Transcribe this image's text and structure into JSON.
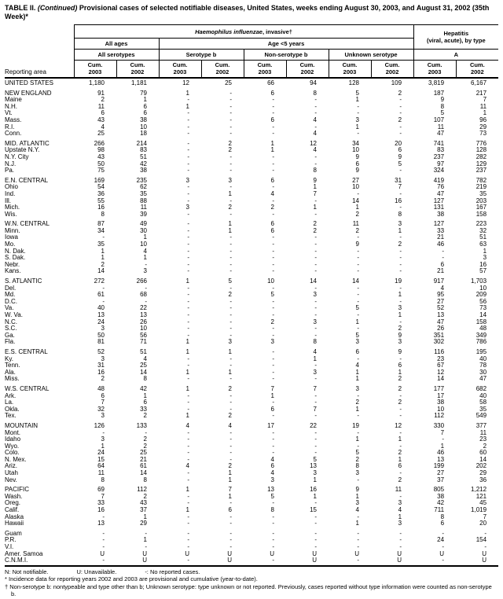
{
  "title": {
    "part1": "TABLE II. ",
    "part2": "(Continued)",
    "part3": " Provisional cases of selected notifiable diseases, United States, weeks ending August 30, 2003, and August 31, 2002 (35th Week)*"
  },
  "colors": {
    "text": "#000000",
    "background": "#ffffff",
    "border": "#000000"
  },
  "header": {
    "reporting_area": "Reporting area",
    "disease_italic": "Haemophilus influenzae",
    "disease_rest": ", invasive†",
    "hepatitis_line1": "Hepatitis",
    "hepatitis_line2": "(viral, acute), by type",
    "all_ages": "All ages",
    "age_under5": "Age <5 years",
    "groups": [
      "All serotypes",
      "Serotype b",
      "Non-serotype b",
      "Unknown serotype",
      "A"
    ],
    "cum_label": "Cum.",
    "year_2003": "2003",
    "year_2002": "2002"
  },
  "table": {
    "rows": [
      {
        "area": "UNITED STATES",
        "gap": false,
        "values": [
          "1,180",
          "1,181",
          "12",
          "25",
          "66",
          "94",
          "128",
          "109",
          "3,819",
          "6,167"
        ]
      },
      {
        "area": "NEW ENGLAND",
        "gap": true,
        "values": [
          "91",
          "79",
          "1",
          "-",
          "6",
          "8",
          "5",
          "2",
          "187",
          "217"
        ]
      },
      {
        "area": "Maine",
        "gap": false,
        "values": [
          "2",
          "1",
          "-",
          "-",
          "-",
          "-",
          "1",
          "-",
          "9",
          "7"
        ]
      },
      {
        "area": "N.H.",
        "gap": false,
        "values": [
          "11",
          "6",
          "1",
          "-",
          "-",
          "-",
          "-",
          "-",
          "8",
          "11"
        ]
      },
      {
        "area": "Vt.",
        "gap": false,
        "values": [
          "6",
          "6",
          "-",
          "-",
          "-",
          "-",
          "-",
          "-",
          "5",
          "1"
        ]
      },
      {
        "area": "Mass.",
        "gap": false,
        "values": [
          "43",
          "38",
          "-",
          "-",
          "6",
          "4",
          "3",
          "2",
          "107",
          "96"
        ]
      },
      {
        "area": "R.I.",
        "gap": false,
        "values": [
          "4",
          "10",
          "-",
          "-",
          "-",
          "-",
          "1",
          "-",
          "11",
          "29"
        ]
      },
      {
        "area": "Conn.",
        "gap": false,
        "values": [
          "25",
          "18",
          "-",
          "-",
          "-",
          "4",
          "-",
          "-",
          "47",
          "73"
        ]
      },
      {
        "area": "MID. ATLANTIC",
        "gap": true,
        "values": [
          "266",
          "214",
          "-",
          "2",
          "1",
          "12",
          "34",
          "20",
          "741",
          "776"
        ]
      },
      {
        "area": "Upstate N.Y.",
        "gap": false,
        "values": [
          "98",
          "83",
          "-",
          "2",
          "1",
          "4",
          "10",
          "6",
          "83",
          "128"
        ]
      },
      {
        "area": "N.Y. City",
        "gap": false,
        "values": [
          "43",
          "51",
          "-",
          "-",
          "-",
          "-",
          "9",
          "9",
          "237",
          "282"
        ]
      },
      {
        "area": "N.J.",
        "gap": false,
        "values": [
          "50",
          "42",
          "-",
          "-",
          "-",
          "-",
          "6",
          "5",
          "97",
          "129"
        ]
      },
      {
        "area": "Pa.",
        "gap": false,
        "values": [
          "75",
          "38",
          "-",
          "-",
          "-",
          "8",
          "9",
          "-",
          "324",
          "237"
        ]
      },
      {
        "area": "E.N. CENTRAL",
        "gap": true,
        "values": [
          "169",
          "235",
          "3",
          "3",
          "6",
          "9",
          "27",
          "31",
          "419",
          "782"
        ]
      },
      {
        "area": "Ohio",
        "gap": false,
        "values": [
          "54",
          "62",
          "-",
          "-",
          "-",
          "1",
          "10",
          "7",
          "76",
          "219"
        ]
      },
      {
        "area": "Ind.",
        "gap": false,
        "values": [
          "36",
          "35",
          "-",
          "1",
          "4",
          "7",
          "-",
          "-",
          "47",
          "35"
        ]
      },
      {
        "area": "Ill.",
        "gap": false,
        "values": [
          "55",
          "88",
          "-",
          "-",
          "-",
          "-",
          "14",
          "16",
          "127",
          "203"
        ]
      },
      {
        "area": "Mich.",
        "gap": false,
        "values": [
          "16",
          "11",
          "3",
          "2",
          "2",
          "1",
          "1",
          "-",
          "131",
          "167"
        ]
      },
      {
        "area": "Wis.",
        "gap": false,
        "values": [
          "8",
          "39",
          "-",
          "-",
          "-",
          "-",
          "2",
          "8",
          "38",
          "158"
        ]
      },
      {
        "area": "W.N. CENTRAL",
        "gap": true,
        "values": [
          "87",
          "49",
          "-",
          "1",
          "6",
          "2",
          "11",
          "3",
          "127",
          "223"
        ]
      },
      {
        "area": "Minn.",
        "gap": false,
        "values": [
          "34",
          "30",
          "-",
          "1",
          "6",
          "2",
          "2",
          "1",
          "33",
          "32"
        ]
      },
      {
        "area": "Iowa",
        "gap": false,
        "values": [
          "-",
          "1",
          "-",
          "-",
          "-",
          "-",
          "-",
          "-",
          "21",
          "51"
        ]
      },
      {
        "area": "Mo.",
        "gap": false,
        "values": [
          "35",
          "10",
          "-",
          "-",
          "-",
          "-",
          "9",
          "2",
          "46",
          "63"
        ]
      },
      {
        "area": "N. Dak.",
        "gap": false,
        "values": [
          "1",
          "4",
          "-",
          "-",
          "-",
          "-",
          "-",
          "-",
          "-",
          "1"
        ]
      },
      {
        "area": "S. Dak.",
        "gap": false,
        "values": [
          "1",
          "1",
          "-",
          "-",
          "-",
          "-",
          "-",
          "-",
          "-",
          "3"
        ]
      },
      {
        "area": "Nebr.",
        "gap": false,
        "values": [
          "2",
          "-",
          "-",
          "-",
          "-",
          "-",
          "-",
          "-",
          "6",
          "16"
        ]
      },
      {
        "area": "Kans.",
        "gap": false,
        "values": [
          "14",
          "3",
          "-",
          "-",
          "-",
          "-",
          "-",
          "-",
          "21",
          "57"
        ]
      },
      {
        "area": "S. ATLANTIC",
        "gap": true,
        "values": [
          "272",
          "266",
          "1",
          "5",
          "10",
          "14",
          "14",
          "19",
          "917",
          "1,703"
        ]
      },
      {
        "area": "Del.",
        "gap": false,
        "values": [
          "-",
          "-",
          "-",
          "-",
          "-",
          "-",
          "-",
          "-",
          "4",
          "10"
        ]
      },
      {
        "area": "Md.",
        "gap": false,
        "values": [
          "61",
          "68",
          "-",
          "2",
          "5",
          "3",
          "-",
          "1",
          "95",
          "209"
        ]
      },
      {
        "area": "D.C.",
        "gap": false,
        "values": [
          "-",
          "-",
          "-",
          "-",
          "-",
          "-",
          "-",
          "-",
          "27",
          "56"
        ]
      },
      {
        "area": "Va.",
        "gap": false,
        "values": [
          "40",
          "22",
          "-",
          "-",
          "-",
          "-",
          "5",
          "3",
          "52",
          "73"
        ]
      },
      {
        "area": "W. Va.",
        "gap": false,
        "values": [
          "13",
          "13",
          "-",
          "-",
          "-",
          "-",
          "-",
          "1",
          "13",
          "14"
        ]
      },
      {
        "area": "N.C.",
        "gap": false,
        "values": [
          "24",
          "26",
          "-",
          "-",
          "2",
          "3",
          "1",
          "-",
          "47",
          "158"
        ]
      },
      {
        "area": "S.C.",
        "gap": false,
        "values": [
          "3",
          "10",
          "-",
          "-",
          "-",
          "-",
          "-",
          "2",
          "26",
          "48"
        ]
      },
      {
        "area": "Ga.",
        "gap": false,
        "values": [
          "50",
          "56",
          "-",
          "-",
          "-",
          "-",
          "5",
          "9",
          "351",
          "349"
        ]
      },
      {
        "area": "Fla.",
        "gap": false,
        "values": [
          "81",
          "71",
          "1",
          "3",
          "3",
          "8",
          "3",
          "3",
          "302",
          "786"
        ]
      },
      {
        "area": "E.S. CENTRAL",
        "gap": true,
        "values": [
          "52",
          "51",
          "1",
          "1",
          "-",
          "4",
          "6",
          "9",
          "116",
          "195"
        ]
      },
      {
        "area": "Ky.",
        "gap": false,
        "values": [
          "3",
          "4",
          "-",
          "-",
          "-",
          "1",
          "-",
          "-",
          "23",
          "40"
        ]
      },
      {
        "area": "Tenn.",
        "gap": false,
        "values": [
          "31",
          "25",
          "-",
          "-",
          "-",
          "-",
          "4",
          "6",
          "67",
          "78"
        ]
      },
      {
        "area": "Ala.",
        "gap": false,
        "values": [
          "16",
          "14",
          "1",
          "1",
          "-",
          "3",
          "1",
          "1",
          "12",
          "30"
        ]
      },
      {
        "area": "Miss.",
        "gap": false,
        "values": [
          "2",
          "8",
          "-",
          "-",
          "-",
          "-",
          "1",
          "2",
          "14",
          "47"
        ]
      },
      {
        "area": "W.S. CENTRAL",
        "gap": true,
        "values": [
          "48",
          "42",
          "1",
          "2",
          "7",
          "7",
          "3",
          "2",
          "177",
          "682"
        ]
      },
      {
        "area": "Ark.",
        "gap": false,
        "values": [
          "6",
          "1",
          "-",
          "-",
          "1",
          "-",
          "-",
          "-",
          "17",
          "40"
        ]
      },
      {
        "area": "La.",
        "gap": false,
        "values": [
          "7",
          "6",
          "-",
          "-",
          "-",
          "-",
          "2",
          "2",
          "38",
          "58"
        ]
      },
      {
        "area": "Okla.",
        "gap": false,
        "values": [
          "32",
          "33",
          "-",
          "-",
          "6",
          "7",
          "1",
          "-",
          "10",
          "35"
        ]
      },
      {
        "area": "Tex.",
        "gap": false,
        "values": [
          "3",
          "2",
          "1",
          "2",
          "-",
          "-",
          "-",
          "-",
          "112",
          "549"
        ]
      },
      {
        "area": "MOUNTAIN",
        "gap": true,
        "values": [
          "126",
          "133",
          "4",
          "4",
          "17",
          "22",
          "19",
          "12",
          "330",
          "377"
        ]
      },
      {
        "area": "Mont.",
        "gap": false,
        "values": [
          "-",
          "-",
          "-",
          "-",
          "-",
          "-",
          "-",
          "-",
          "7",
          "11"
        ]
      },
      {
        "area": "Idaho",
        "gap": false,
        "values": [
          "3",
          "2",
          "-",
          "-",
          "-",
          "-",
          "1",
          "1",
          "-",
          "23"
        ]
      },
      {
        "area": "Wyo.",
        "gap": false,
        "values": [
          "1",
          "2",
          "-",
          "-",
          "-",
          "-",
          "-",
          "-",
          "1",
          "2"
        ]
      },
      {
        "area": "Colo.",
        "gap": false,
        "values": [
          "24",
          "25",
          "-",
          "-",
          "-",
          "-",
          "5",
          "2",
          "46",
          "60"
        ]
      },
      {
        "area": "N. Mex.",
        "gap": false,
        "values": [
          "15",
          "21",
          "-",
          "-",
          "4",
          "5",
          "2",
          "1",
          "13",
          "14"
        ]
      },
      {
        "area": "Ariz.",
        "gap": false,
        "values": [
          "64",
          "61",
          "4",
          "2",
          "6",
          "13",
          "8",
          "6",
          "199",
          "202"
        ]
      },
      {
        "area": "Utah",
        "gap": false,
        "values": [
          "11",
          "14",
          "-",
          "1",
          "4",
          "3",
          "3",
          "-",
          "27",
          "29"
        ]
      },
      {
        "area": "Nev.",
        "gap": false,
        "values": [
          "8",
          "8",
          "-",
          "1",
          "3",
          "1",
          "-",
          "2",
          "37",
          "36"
        ]
      },
      {
        "area": "PACIFIC",
        "gap": true,
        "values": [
          "69",
          "112",
          "1",
          "7",
          "13",
          "16",
          "9",
          "11",
          "805",
          "1,212"
        ]
      },
      {
        "area": "Wash.",
        "gap": false,
        "values": [
          "7",
          "2",
          "-",
          "1",
          "5",
          "1",
          "1",
          "-",
          "38",
          "121"
        ]
      },
      {
        "area": "Oreg.",
        "gap": false,
        "values": [
          "33",
          "43",
          "-",
          "-",
          "-",
          "-",
          "3",
          "3",
          "42",
          "45"
        ]
      },
      {
        "area": "Calif.",
        "gap": false,
        "values": [
          "16",
          "37",
          "1",
          "6",
          "8",
          "15",
          "4",
          "4",
          "711",
          "1,019"
        ]
      },
      {
        "area": "Alaska",
        "gap": false,
        "values": [
          "-",
          "1",
          "-",
          "-",
          "-",
          "-",
          "-",
          "1",
          "8",
          "7"
        ]
      },
      {
        "area": "Hawaii",
        "gap": false,
        "values": [
          "13",
          "29",
          "-",
          "-",
          "-",
          "-",
          "1",
          "3",
          "6",
          "20"
        ]
      },
      {
        "area": "Guam",
        "gap": true,
        "values": [
          "-",
          "-",
          "-",
          "-",
          "-",
          "-",
          "-",
          "-",
          "-",
          "-"
        ]
      },
      {
        "area": "P.R.",
        "gap": false,
        "values": [
          "-",
          "1",
          "-",
          "-",
          "-",
          "-",
          "-",
          "-",
          "24",
          "154"
        ]
      },
      {
        "area": "V.I.",
        "gap": false,
        "values": [
          "-",
          "-",
          "-",
          "-",
          "-",
          "-",
          "-",
          "-",
          "-",
          "-"
        ]
      },
      {
        "area": "Amer. Samoa",
        "gap": false,
        "values": [
          "U",
          "U",
          "U",
          "U",
          "U",
          "U",
          "U",
          "U",
          "U",
          "U"
        ]
      },
      {
        "area": "C.N.M.I.",
        "gap": false,
        "values": [
          "-",
          "U",
          "-",
          "U",
          "-",
          "U",
          "-",
          "U",
          "-",
          "U"
        ]
      }
    ]
  },
  "footnotes": {
    "legend": [
      "N: Not notifiable.",
      "U: Unavailable.",
      "-: No reported cases."
    ],
    "star": "* Incidence data for reporting years 2002 and 2003 are provisional and cumulative (year-to-date).",
    "dagger": "† Non-serotype b: nontypeable and type other than b; Unknown serotype: type unknown or not reported. Previously, cases reported without type information were counted as non-serotype b."
  }
}
